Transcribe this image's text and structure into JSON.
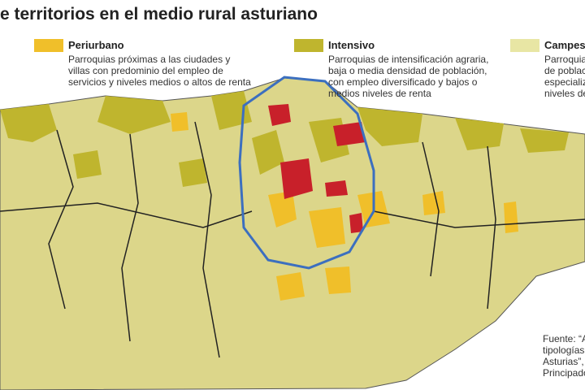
{
  "title": "e territorios en el medio rural asturiano",
  "legend": [
    {
      "label": "Periurbano",
      "color": "#f0bf2a",
      "description": [
        "Parroquias próximas a las ciudades y",
        "villas con predominio del empleo de",
        "servicios y niveles medios o altos de renta"
      ]
    },
    {
      "label": "Intensivo",
      "color": "#bfb52e",
      "description": [
        "Parroquias de intensificación agraria,",
        "baja o media densidad de población,",
        "con empleo diversificado y bajos o",
        "medios niveles de renta"
      ]
    },
    {
      "label": "Campesi",
      "color": "#e8e6a4",
      "description": [
        "Parroquia",
        "de poblaci",
        "especializ",
        "niveles de"
      ]
    }
  ],
  "source": [
    "Fuente: “A",
    "tipologías",
    "Asturias”,",
    "Principado"
  ]
}
